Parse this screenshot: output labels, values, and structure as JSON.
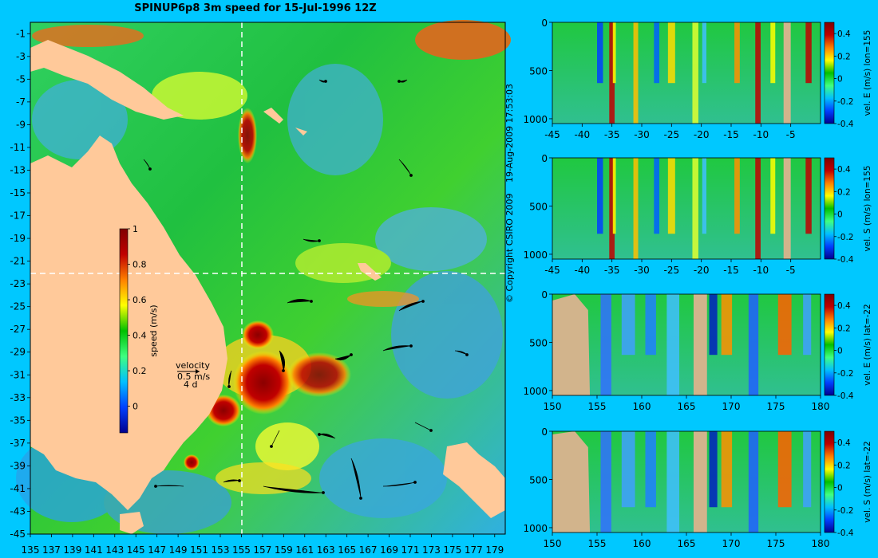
{
  "chart_data": [
    {
      "type": "heatmap",
      "title": "SPINUP6p8 3m speed for 15-Jul-1996 12Z",
      "x": [
        135,
        137,
        139,
        141,
        143,
        145,
        147,
        149,
        151,
        153,
        155,
        157,
        159,
        161,
        163,
        165,
        167,
        169,
        171,
        173,
        175,
        177,
        179
      ],
      "y": [
        -1,
        -3,
        -5,
        -7,
        -9,
        -11,
        -13,
        -15,
        -17,
        -19,
        -21,
        -23,
        -25,
        -27,
        -29,
        -31,
        -33,
        -35,
        -37,
        -39,
        -41,
        -43,
        -45
      ],
      "xlim": [
        135,
        180
      ],
      "ylim": [
        -45,
        0
      ],
      "colorbar": {
        "label": "speed (m/s)",
        "ticks": [
          0,
          0.2,
          0.4,
          0.6,
          0.8,
          1
        ],
        "range": [
          -0.15,
          1
        ]
      },
      "velocity_key": {
        "label": "velocity",
        "speed": "0.5 m/s",
        "interval": "4 d"
      },
      "land_color": "#ffc99a",
      "section_lines": {
        "lon": 155,
        "lat": -22
      }
    },
    {
      "type": "heatmap",
      "x": [
        -45,
        -40,
        -35,
        -30,
        -25,
        -20,
        -15,
        -10,
        -5
      ],
      "y": [
        0,
        500,
        1000
      ],
      "xlim": [
        -45,
        0
      ],
      "ylim": [
        1050,
        0
      ],
      "colorbar": {
        "label": "vel. E (m/s) lon=155",
        "ticks": [
          -0.4,
          -0.2,
          0,
          0.2,
          0.4
        ],
        "range": [
          -0.4,
          0.5
        ]
      }
    },
    {
      "type": "heatmap",
      "x": [
        -45,
        -40,
        -35,
        -30,
        -25,
        -20,
        -15,
        -10,
        -5
      ],
      "y": [
        0,
        500,
        1000
      ],
      "xlim": [
        -45,
        0
      ],
      "ylim": [
        1050,
        0
      ],
      "colorbar": {
        "label": "vel. S (m/s) lon=155",
        "ticks": [
          -0.4,
          -0.2,
          0,
          0.2,
          0.4
        ],
        "range": [
          -0.4,
          0.5
        ]
      }
    },
    {
      "type": "heatmap",
      "x": [
        150,
        155,
        160,
        165,
        170,
        175,
        180
      ],
      "y": [
        0,
        500,
        1000
      ],
      "xlim": [
        150,
        180
      ],
      "ylim": [
        1050,
        0
      ],
      "colorbar": {
        "label": "vel. E (m/s) lat=-22",
        "ticks": [
          -0.4,
          -0.2,
          0,
          0.2,
          0.4
        ],
        "range": [
          -0.4,
          0.5
        ]
      }
    },
    {
      "type": "heatmap",
      "x": [
        150,
        155,
        160,
        165,
        170,
        175,
        180
      ],
      "y": [
        0,
        500,
        1000
      ],
      "xlim": [
        150,
        180
      ],
      "ylim": [
        1050,
        0
      ],
      "colorbar": {
        "label": "vel. S (m/s) lat=-22",
        "ticks": [
          -0.4,
          -0.2,
          0,
          0.2,
          0.4
        ],
        "range": [
          -0.4,
          0.5
        ]
      }
    }
  ],
  "copyright": "© Copyright CSIRO 2009",
  "timestamp": "19-Aug-2009 17:53:03",
  "colors": {
    "background": "#00c8ff",
    "land": "#ffc99a",
    "section_land": "#d2b48c",
    "colormap": [
      "#00008f",
      "#0040ff",
      "#00c0ff",
      "#40ff80",
      "#00c000",
      "#ffff00",
      "#ff8000",
      "#c00000",
      "#800000"
    ]
  }
}
